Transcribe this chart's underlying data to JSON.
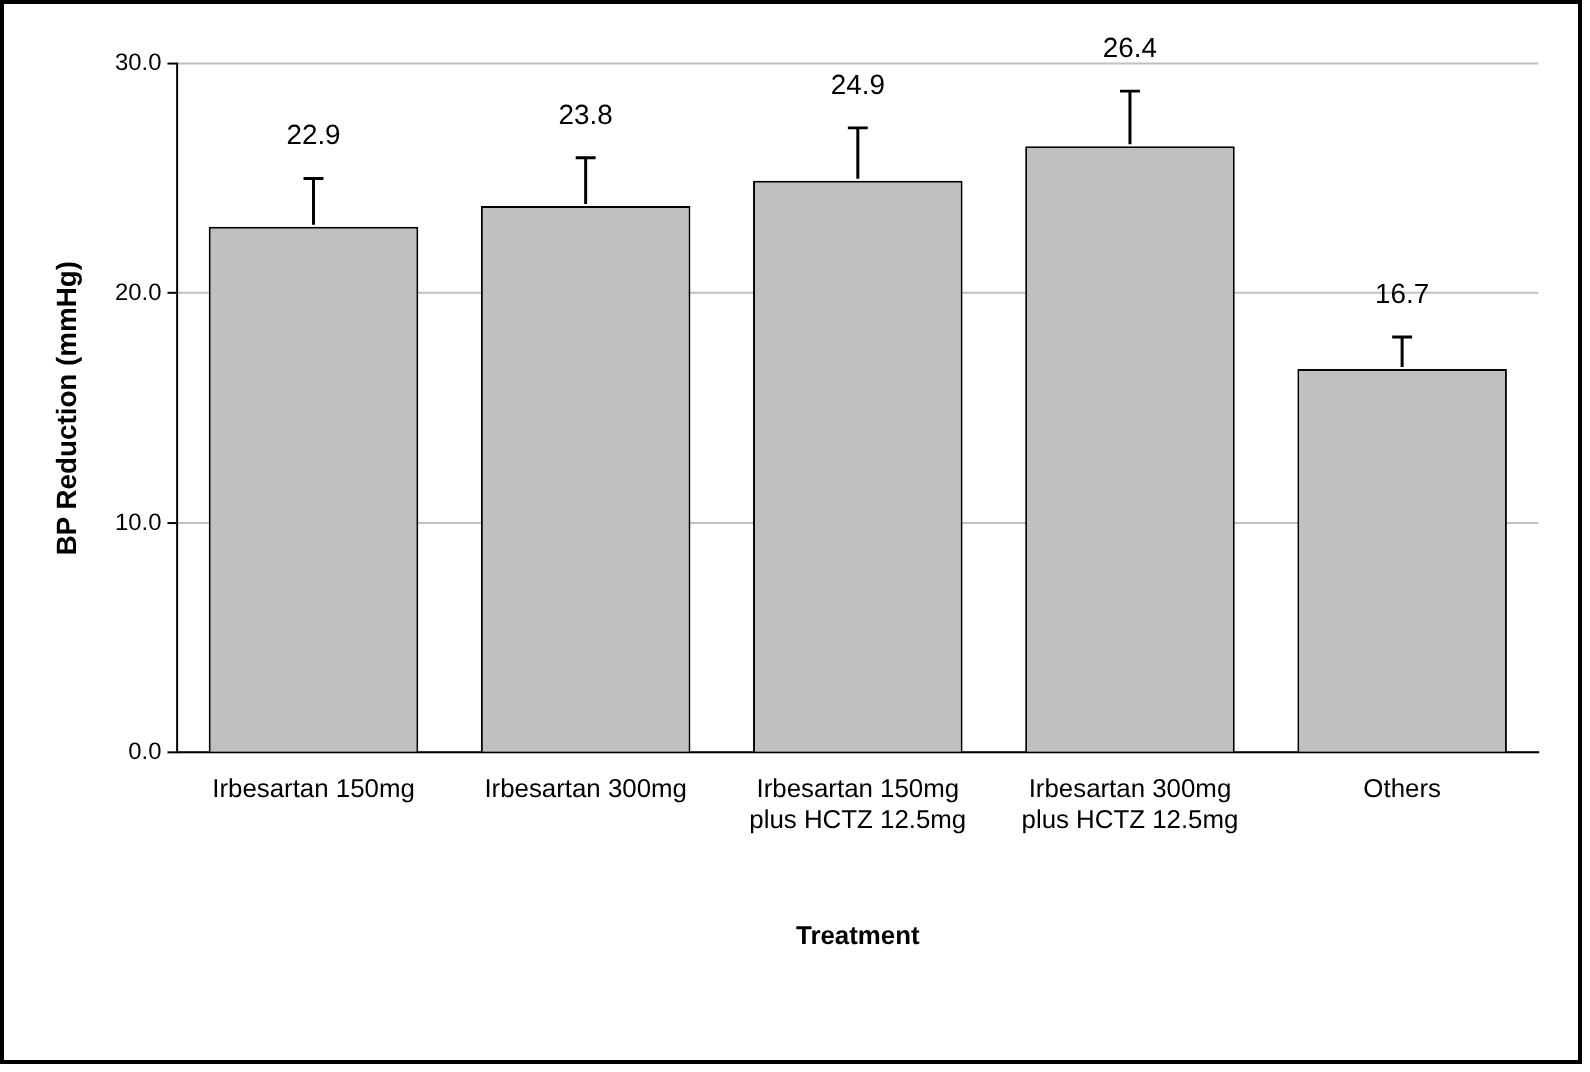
{
  "chart_data": {
    "type": "bar",
    "xlabel": "Treatment",
    "ylabel": "BP Reduction (mmHg)",
    "categories": [
      "Irbesartan 150mg",
      "Irbesartan 300mg",
      "Irbesartan 150mg plus HCTZ 12.5mg",
      "Irbesartan 300mg plus HCTZ 12.5mg",
      "Others"
    ],
    "values": [
      22.9,
      23.8,
      24.9,
      26.4,
      16.7
    ],
    "errors": [
      [
        22.9,
        25.0
      ],
      [
        23.8,
        25.9
      ],
      [
        24.9,
        27.2
      ],
      [
        26.4,
        28.8
      ],
      [
        16.7,
        18.1
      ]
    ],
    "color": "#c0c0c0",
    "ylim": [
      0,
      30
    ],
    "yticks": [
      {
        "value": 0,
        "label": "0.0"
      },
      {
        "value": 10,
        "label": "10.0"
      },
      {
        "value": 20,
        "label": "20.0"
      },
      {
        "value": 30,
        "label": "30.0"
      }
    ],
    "grid": "y",
    "data_labels": true
  }
}
